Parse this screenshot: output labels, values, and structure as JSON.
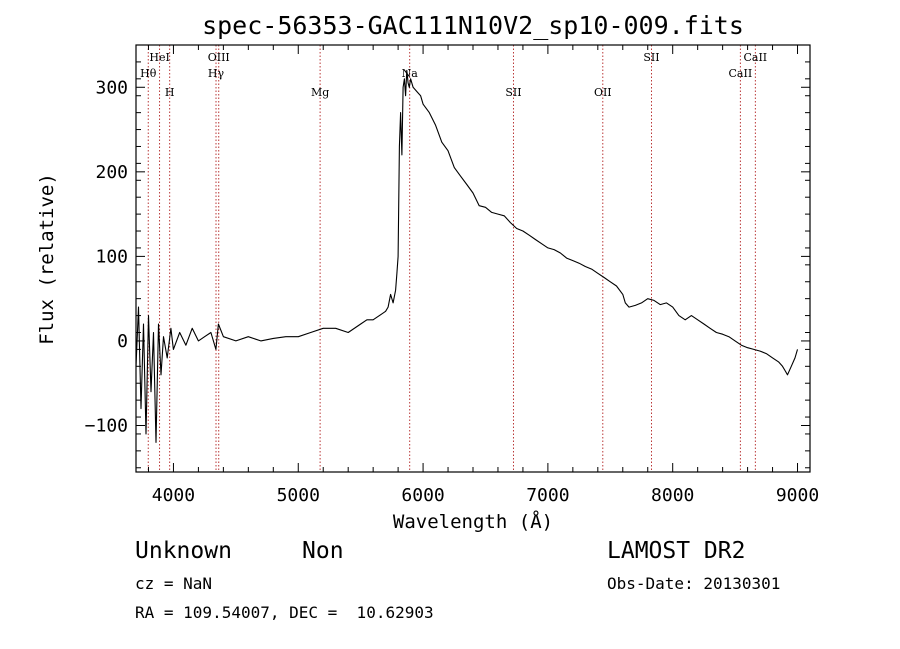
{
  "chart_data": {
    "type": "line",
    "title": "spec-56353-GAC111N10V2_sp10-009.fits",
    "xlabel": "Wavelength (Å)",
    "ylabel": "Flux (relative)",
    "xlim": [
      3700,
      9100
    ],
    "ylim": [
      -155,
      350
    ],
    "xticks": [
      4000,
      5000,
      6000,
      7000,
      8000,
      9000
    ],
    "yticks": [
      -100,
      0,
      100,
      200,
      300
    ],
    "grid": false,
    "series": [
      {
        "color": "#000000",
        "x": [
          3700,
          3720,
          3740,
          3760,
          3780,
          3800,
          3820,
          3840,
          3860,
          3880,
          3900,
          3920,
          3950,
          3980,
          4000,
          4050,
          4100,
          4150,
          4200,
          4250,
          4300,
          4340,
          4360,
          4400,
          4500,
          4600,
          4700,
          4800,
          4900,
          5000,
          5100,
          5200,
          5300,
          5400,
          5500,
          5550,
          5600,
          5650,
          5700,
          5720,
          5740,
          5760,
          5780,
          5790,
          5800,
          5810,
          5820,
          5830,
          5840,
          5850,
          5860,
          5870,
          5880,
          5890,
          5900,
          5920,
          5950,
          5980,
          6000,
          6050,
          6100,
          6150,
          6200,
          6250,
          6300,
          6350,
          6400,
          6450,
          6500,
          6550,
          6600,
          6650,
          6700,
          6750,
          6800,
          6850,
          6900,
          6950,
          7000,
          7050,
          7100,
          7150,
          7200,
          7250,
          7300,
          7350,
          7400,
          7450,
          7500,
          7550,
          7600,
          7620,
          7650,
          7700,
          7750,
          7800,
          7850,
          7900,
          7950,
          8000,
          8050,
          8100,
          8150,
          8200,
          8250,
          8300,
          8350,
          8400,
          8450,
          8500,
          8550,
          8600,
          8650,
          8700,
          8750,
          8800,
          8850,
          8880,
          8900,
          8920,
          8950,
          8980,
          9000
        ],
        "y": [
          -30,
          40,
          -80,
          20,
          -110,
          30,
          -60,
          10,
          -120,
          20,
          -40,
          5,
          -20,
          15,
          -10,
          10,
          -5,
          15,
          0,
          5,
          10,
          -10,
          20,
          5,
          0,
          5,
          0,
          3,
          5,
          5,
          10,
          15,
          15,
          10,
          20,
          25,
          25,
          30,
          35,
          40,
          55,
          45,
          60,
          80,
          100,
          230,
          270,
          220,
          300,
          310,
          290,
          320,
          305,
          300,
          310,
          300,
          295,
          290,
          280,
          270,
          255,
          235,
          225,
          205,
          195,
          185,
          175,
          160,
          158,
          152,
          150,
          148,
          140,
          133,
          130,
          125,
          120,
          115,
          110,
          108,
          104,
          98,
          95,
          92,
          88,
          85,
          80,
          75,
          70,
          65,
          55,
          45,
          40,
          42,
          45,
          50,
          48,
          43,
          45,
          40,
          30,
          25,
          30,
          25,
          20,
          15,
          10,
          8,
          5,
          0,
          -5,
          -8,
          -10,
          -12,
          -15,
          -20,
          -25,
          -30,
          -35,
          -40,
          -30,
          -20,
          -10
        ]
      }
    ],
    "lines": [
      {
        "label": "Hθ",
        "x": 3798,
        "row": 2
      },
      {
        "label": "HeI",
        "x": 3889,
        "row": 1
      },
      {
        "label": "H",
        "x": 3970,
        "row": 3
      },
      {
        "label": "OIII",
        "x": 4363,
        "row": 1
      },
      {
        "label": "Hγ",
        "x": 4341,
        "row": 2
      },
      {
        "label": "Mg",
        "x": 5175,
        "row": 3
      },
      {
        "label": "Na",
        "x": 5893,
        "row": 2
      },
      {
        "label": "SII",
        "x": 6724,
        "row": 3
      },
      {
        "label": "OII",
        "x": 7440,
        "row": 3
      },
      {
        "label": "SII",
        "x": 7830,
        "row": 1
      },
      {
        "label": "CaII",
        "x": 8542,
        "row": 2
      },
      {
        "label": "CaII",
        "x": 8662,
        "row": 1
      }
    ]
  },
  "info": {
    "object_class": "Unknown",
    "subclass": "Non",
    "cz": "cz = NaN",
    "radec": "RA = 109.54007, DEC =  10.62903",
    "survey": "LAMOST DR2",
    "obs_date": "Obs-Date: 20130301"
  }
}
